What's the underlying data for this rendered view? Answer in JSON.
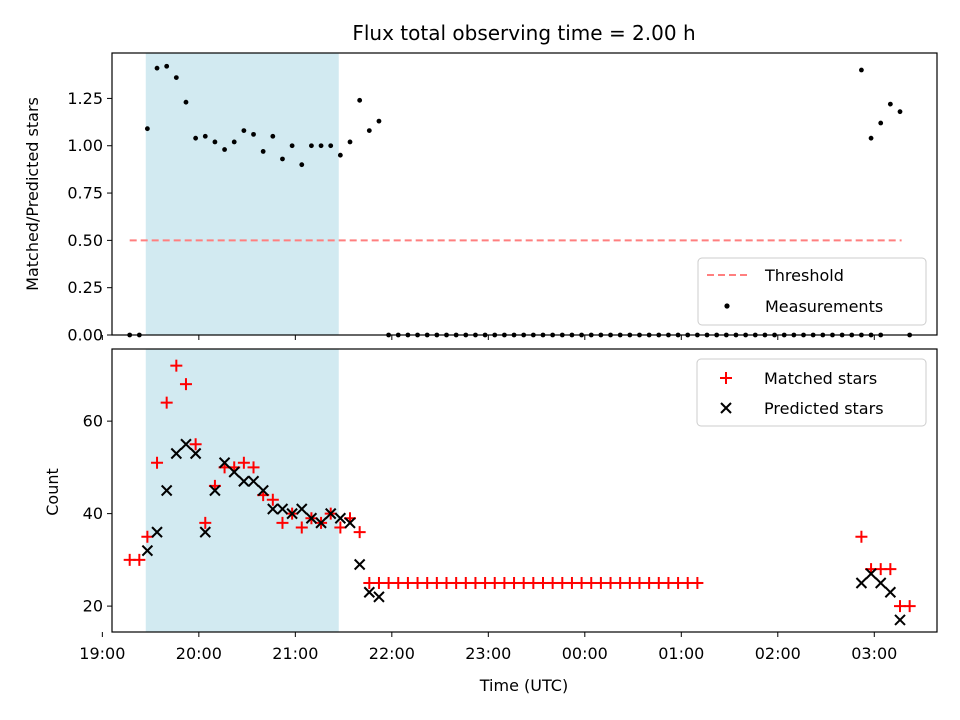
{
  "chart_data": [
    {
      "type": "scatter",
      "title": "Flux total observing time = 2.00 h",
      "xlabel": "",
      "ylabel": "Matched/Predicted stars",
      "x_axis": "time",
      "xlim": [
        "19:06",
        "03:39"
      ],
      "ylim": [
        0,
        1.49
      ],
      "yticks": [
        0.0,
        0.25,
        0.5,
        0.75,
        1.0,
        1.25
      ],
      "ytick_labels": [
        "0.00",
        "0.25",
        "0.50",
        "0.75",
        "1.00",
        "1.25"
      ],
      "grid": false,
      "legend": "lower-right",
      "shaded_interval": {
        "start": "19:27",
        "end": "21:27",
        "color": "#add8e6"
      },
      "threshold": {
        "name": "Threshold",
        "y": 0.5,
        "x_start": "19:17",
        "x_end": "03:17",
        "color": "#ff7f7f",
        "style": "dashed"
      },
      "series": [
        {
          "name": "Measurements",
          "marker": "dot",
          "color": "#000000",
          "points": [
            [
              "19:17",
              0.0
            ],
            [
              "19:23",
              0.0
            ],
            [
              "19:28",
              1.09
            ],
            [
              "19:34",
              1.41
            ],
            [
              "19:40",
              1.42
            ],
            [
              "19:46",
              1.36
            ],
            [
              "19:52",
              1.23
            ],
            [
              "19:58",
              1.04
            ],
            [
              "20:04",
              1.05
            ],
            [
              "20:10",
              1.02
            ],
            [
              "20:16",
              0.98
            ],
            [
              "20:22",
              1.02
            ],
            [
              "20:28",
              1.08
            ],
            [
              "20:34",
              1.06
            ],
            [
              "20:40",
              0.97
            ],
            [
              "20:46",
              1.05
            ],
            [
              "20:52",
              0.93
            ],
            [
              "20:58",
              1.0
            ],
            [
              "21:04",
              0.9
            ],
            [
              "21:10",
              1.0
            ],
            [
              "21:16",
              1.0
            ],
            [
              "21:22",
              1.0
            ],
            [
              "21:28",
              0.95
            ],
            [
              "21:34",
              1.02
            ],
            [
              "21:40",
              1.24
            ],
            [
              "21:46",
              1.08
            ],
            [
              "21:52",
              1.13
            ],
            [
              "21:58",
              0.0
            ],
            [
              "22:04",
              0.0
            ],
            [
              "22:10",
              0.0
            ],
            [
              "22:16",
              0.0
            ],
            [
              "22:22",
              0.0
            ],
            [
              "22:28",
              0.0
            ],
            [
              "22:34",
              0.0
            ],
            [
              "22:40",
              0.0
            ],
            [
              "22:46",
              0.0
            ],
            [
              "22:52",
              0.0
            ],
            [
              "22:58",
              0.0
            ],
            [
              "23:04",
              0.0
            ],
            [
              "23:10",
              0.0
            ],
            [
              "23:16",
              0.0
            ],
            [
              "23:22",
              0.0
            ],
            [
              "23:28",
              0.0
            ],
            [
              "23:34",
              0.0
            ],
            [
              "23:40",
              0.0
            ],
            [
              "23:46",
              0.0
            ],
            [
              "23:52",
              0.0
            ],
            [
              "23:58",
              0.0
            ],
            [
              "00:04",
              0.0
            ],
            [
              "00:10",
              0.0
            ],
            [
              "00:16",
              0.0
            ],
            [
              "00:22",
              0.0
            ],
            [
              "00:28",
              0.0
            ],
            [
              "00:34",
              0.0
            ],
            [
              "00:40",
              0.0
            ],
            [
              "00:46",
              0.0
            ],
            [
              "00:52",
              0.0
            ],
            [
              "00:58",
              0.0
            ],
            [
              "01:04",
              0.0
            ],
            [
              "01:10",
              0.0
            ],
            [
              "01:16",
              0.0
            ],
            [
              "01:22",
              0.0
            ],
            [
              "01:28",
              0.0
            ],
            [
              "01:34",
              0.0
            ],
            [
              "01:40",
              0.0
            ],
            [
              "01:46",
              0.0
            ],
            [
              "01:52",
              0.0
            ],
            [
              "01:58",
              0.0
            ],
            [
              "02:04",
              0.0
            ],
            [
              "02:10",
              0.0
            ],
            [
              "02:16",
              0.0
            ],
            [
              "02:22",
              0.0
            ],
            [
              "02:28",
              0.0
            ],
            [
              "02:34",
              0.0
            ],
            [
              "02:40",
              0.0
            ],
            [
              "02:46",
              0.0
            ],
            [
              "02:52",
              0.0
            ],
            [
              "02:58",
              0.0
            ],
            [
              "03:04",
              0.0
            ],
            [
              "02:52",
              1.4
            ],
            [
              "02:58",
              1.04
            ],
            [
              "03:04",
              1.12
            ],
            [
              "03:10",
              1.22
            ],
            [
              "03:16",
              1.18
            ],
            [
              "03:22",
              0.0
            ]
          ]
        }
      ]
    },
    {
      "type": "scatter",
      "title": "",
      "xlabel": "Time (UTC)",
      "ylabel": "Count",
      "x_axis": "time",
      "xlim": [
        "19:06",
        "03:39"
      ],
      "ylim": [
        14.4,
        75.6
      ],
      "yticks": [
        20,
        40,
        60
      ],
      "xticks": [
        "19:00",
        "20:00",
        "21:00",
        "22:00",
        "23:00",
        "00:00",
        "01:00",
        "02:00",
        "03:00"
      ],
      "grid": false,
      "legend": "top-right",
      "shaded_interval": {
        "start": "19:27",
        "end": "21:27",
        "color": "#add8e6"
      },
      "series": [
        {
          "name": "Matched stars",
          "marker": "plus",
          "color": "#ff0000",
          "points": [
            [
              "19:17",
              30
            ],
            [
              "19:23",
              30
            ],
            [
              "19:28",
              35
            ],
            [
              "19:34",
              51
            ],
            [
              "19:40",
              64
            ],
            [
              "19:46",
              72
            ],
            [
              "19:52",
              68
            ],
            [
              "19:58",
              55
            ],
            [
              "20:04",
              38
            ],
            [
              "20:10",
              46
            ],
            [
              "20:16",
              50
            ],
            [
              "20:22",
              50
            ],
            [
              "20:28",
              51
            ],
            [
              "20:34",
              50
            ],
            [
              "20:40",
              44
            ],
            [
              "20:46",
              43
            ],
            [
              "20:52",
              38
            ],
            [
              "20:58",
              40
            ],
            [
              "21:04",
              37
            ],
            [
              "21:10",
              39
            ],
            [
              "21:16",
              38
            ],
            [
              "21:22",
              40
            ],
            [
              "21:28",
              37
            ],
            [
              "21:34",
              39
            ],
            [
              "21:40",
              36
            ],
            [
              "21:46",
              25
            ],
            [
              "21:52",
              25
            ],
            [
              "21:58",
              25
            ],
            [
              "22:04",
              25
            ],
            [
              "22:10",
              25
            ],
            [
              "22:16",
              25
            ],
            [
              "22:22",
              25
            ],
            [
              "22:28",
              25
            ],
            [
              "22:34",
              25
            ],
            [
              "22:40",
              25
            ],
            [
              "22:46",
              25
            ],
            [
              "22:52",
              25
            ],
            [
              "22:58",
              25
            ],
            [
              "23:04",
              25
            ],
            [
              "23:10",
              25
            ],
            [
              "23:16",
              25
            ],
            [
              "23:22",
              25
            ],
            [
              "23:28",
              25
            ],
            [
              "23:34",
              25
            ],
            [
              "23:40",
              25
            ],
            [
              "23:46",
              25
            ],
            [
              "23:52",
              25
            ],
            [
              "23:58",
              25
            ],
            [
              "00:04",
              25
            ],
            [
              "00:10",
              25
            ],
            [
              "00:16",
              25
            ],
            [
              "00:22",
              25
            ],
            [
              "00:28",
              25
            ],
            [
              "00:34",
              25
            ],
            [
              "00:40",
              25
            ],
            [
              "00:46",
              25
            ],
            [
              "00:52",
              25
            ],
            [
              "00:58",
              25
            ],
            [
              "01:04",
              25
            ],
            [
              "01:10",
              25
            ],
            [
              "02:52",
              35
            ],
            [
              "02:58",
              28
            ],
            [
              "03:04",
              28
            ],
            [
              "03:10",
              28
            ],
            [
              "03:16",
              20
            ],
            [
              "03:22",
              20
            ]
          ]
        },
        {
          "name": "Predicted stars",
          "marker": "x",
          "color": "#000000",
          "points": [
            [
              "19:28",
              32
            ],
            [
              "19:34",
              36
            ],
            [
              "19:40",
              45
            ],
            [
              "19:46",
              53
            ],
            [
              "19:52",
              55
            ],
            [
              "19:58",
              53
            ],
            [
              "20:04",
              36
            ],
            [
              "20:10",
              45
            ],
            [
              "20:16",
              51
            ],
            [
              "20:22",
              49
            ],
            [
              "20:28",
              47
            ],
            [
              "20:34",
              47
            ],
            [
              "20:40",
              45
            ],
            [
              "20:46",
              41
            ],
            [
              "20:52",
              41
            ],
            [
              "20:58",
              40
            ],
            [
              "21:04",
              41
            ],
            [
              "21:10",
              39
            ],
            [
              "21:16",
              38
            ],
            [
              "21:22",
              40
            ],
            [
              "21:28",
              39
            ],
            [
              "21:34",
              38
            ],
            [
              "21:40",
              29
            ],
            [
              "21:46",
              23
            ],
            [
              "21:52",
              22
            ],
            [
              "02:52",
              25
            ],
            [
              "02:58",
              27
            ],
            [
              "03:04",
              25
            ],
            [
              "03:10",
              23
            ],
            [
              "03:16",
              17
            ]
          ]
        }
      ]
    }
  ]
}
